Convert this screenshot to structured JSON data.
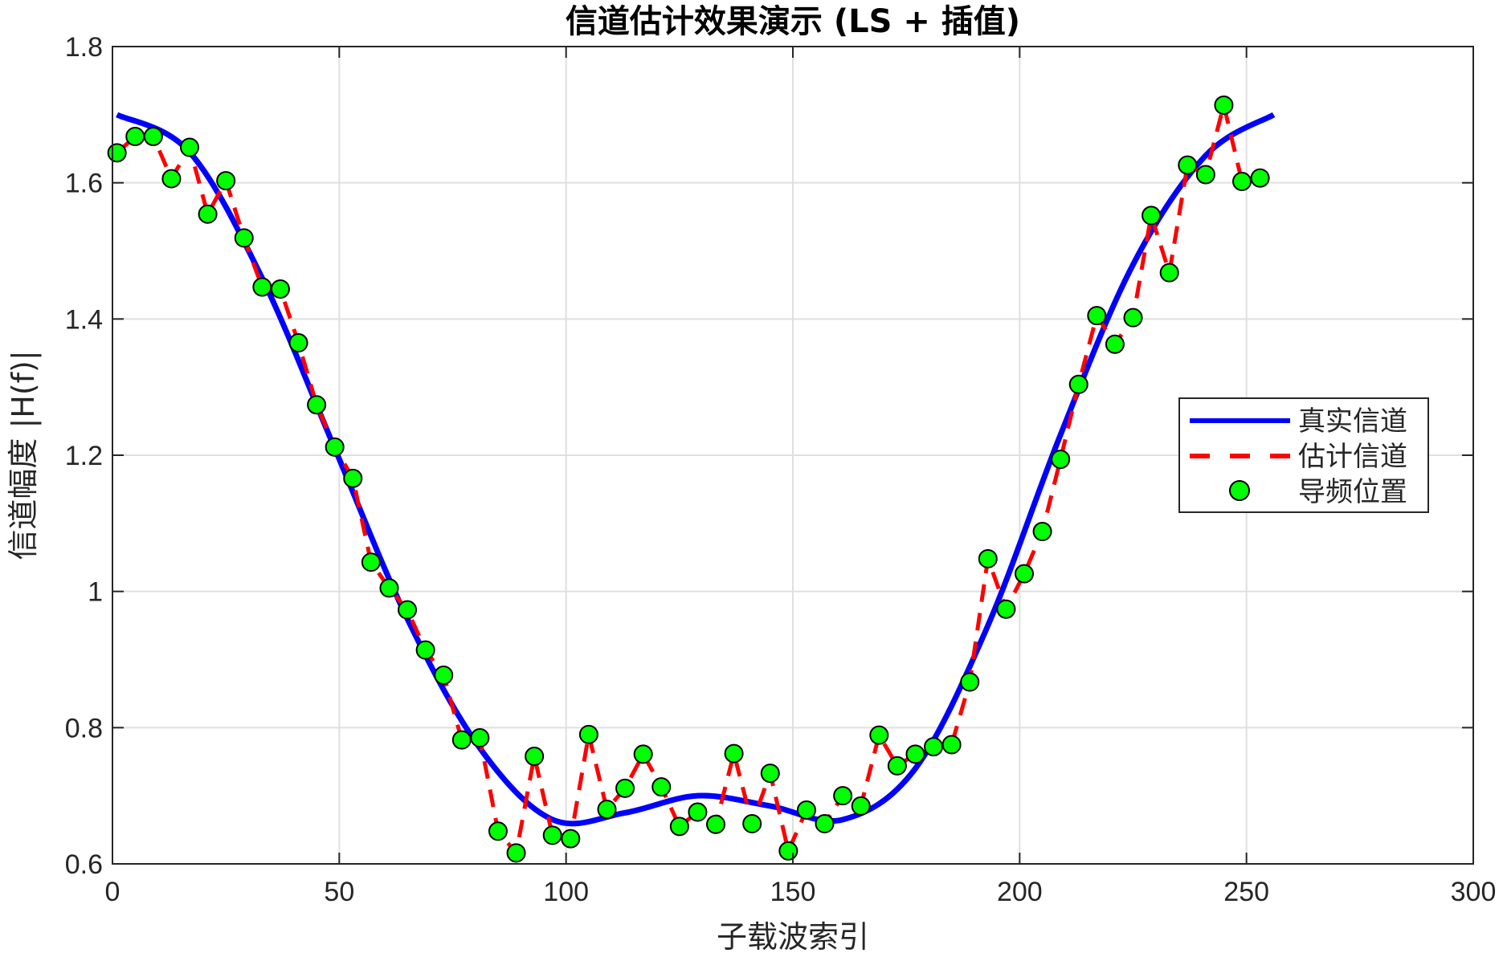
{
  "chart_data": {
    "type": "line",
    "title": "信道估计效果演示 (LS + 插值)",
    "xlabel": "子载波索引",
    "ylabel": "信道幅度 |H(f)|",
    "xlim": [
      0,
      300
    ],
    "ylim": [
      0.6,
      1.8
    ],
    "xticks": [
      "0",
      "50",
      "100",
      "150",
      "200",
      "250",
      "300"
    ],
    "yticks": [
      "0.6",
      "0.8",
      "1",
      "1.2",
      "1.4",
      "1.6",
      "1.8"
    ],
    "grid": true,
    "legend_position": "right",
    "series": [
      {
        "name": "真实信道",
        "style": "solid",
        "color": "#0000ff",
        "x": [
          1,
          17,
          33,
          49,
          65,
          81,
          97,
          113,
          129,
          145,
          161,
          177,
          193,
          209,
          225,
          241,
          256
        ],
        "y": [
          1.7,
          1.645,
          1.46,
          1.21,
          0.96,
          0.77,
          0.665,
          0.675,
          0.7,
          0.685,
          0.665,
          0.74,
          0.95,
          1.23,
          1.48,
          1.64,
          1.7
        ]
      },
      {
        "name": "估计信道",
        "style": "dashed",
        "color": "#ff0000",
        "x": [
          1,
          5,
          9,
          13,
          17,
          21,
          25,
          29,
          33,
          37,
          41,
          45,
          49,
          53,
          57,
          61,
          65,
          69,
          73,
          77,
          81,
          85,
          89,
          93,
          97,
          101,
          105,
          109,
          113,
          117,
          121,
          125,
          129,
          133,
          137,
          141,
          145,
          149,
          153,
          157,
          161,
          165,
          169,
          173,
          177,
          181,
          185,
          189,
          193,
          197,
          201,
          205,
          209,
          213,
          217,
          221,
          225,
          229,
          233,
          237,
          241,
          245,
          249,
          253
        ],
        "y": [
          1.644,
          1.668,
          1.668,
          1.606,
          1.652,
          1.554,
          1.603,
          1.519,
          1.447,
          1.444,
          1.365,
          1.274,
          1.212,
          1.166,
          1.043,
          1.005,
          0.973,
          0.914,
          0.877,
          0.782,
          0.785,
          0.648,
          0.616,
          0.758,
          0.642,
          0.637,
          0.79,
          0.68,
          0.711,
          0.761,
          0.713,
          0.655,
          0.676,
          0.658,
          0.762,
          0.659,
          0.733,
          0.619,
          0.679,
          0.659,
          0.7,
          0.685,
          0.789,
          0.744,
          0.761,
          0.772,
          0.775,
          0.867,
          1.048,
          0.974,
          1.026,
          1.088,
          1.194,
          1.304,
          1.405,
          1.363,
          1.402,
          1.552,
          1.468,
          1.626,
          1.612,
          1.714,
          1.602,
          1.607
        ]
      },
      {
        "name": "导频位置",
        "style": "markers",
        "color": "#00ff00",
        "x": [
          1,
          5,
          9,
          13,
          17,
          21,
          25,
          29,
          33,
          37,
          41,
          45,
          49,
          53,
          57,
          61,
          65,
          69,
          73,
          77,
          81,
          85,
          89,
          93,
          97,
          101,
          105,
          109,
          113,
          117,
          121,
          125,
          129,
          133,
          137,
          141,
          145,
          149,
          153,
          157,
          161,
          165,
          169,
          173,
          177,
          181,
          185,
          189,
          193,
          197,
          201,
          205,
          209,
          213,
          217,
          221,
          225,
          229,
          233,
          237,
          241,
          245,
          249,
          253
        ],
        "y": [
          1.644,
          1.668,
          1.668,
          1.606,
          1.652,
          1.554,
          1.603,
          1.519,
          1.447,
          1.444,
          1.365,
          1.274,
          1.212,
          1.166,
          1.043,
          1.005,
          0.973,
          0.914,
          0.877,
          0.782,
          0.785,
          0.648,
          0.616,
          0.758,
          0.642,
          0.637,
          0.79,
          0.68,
          0.711,
          0.761,
          0.713,
          0.655,
          0.676,
          0.658,
          0.762,
          0.659,
          0.733,
          0.619,
          0.679,
          0.659,
          0.7,
          0.685,
          0.789,
          0.744,
          0.761,
          0.772,
          0.775,
          0.867,
          1.048,
          0.974,
          1.026,
          1.088,
          1.194,
          1.304,
          1.405,
          1.363,
          1.402,
          1.552,
          1.468,
          1.626,
          1.612,
          1.714,
          1.602,
          1.607
        ]
      }
    ]
  }
}
